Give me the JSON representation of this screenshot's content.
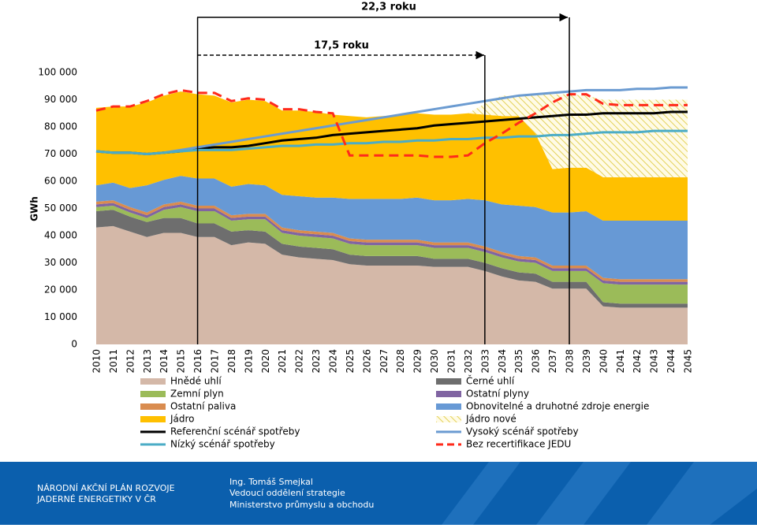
{
  "chart_data": {
    "type": "stacked-area",
    "annotations": [
      "22,3 roku",
      "17,5 roku"
    ],
    "ylabel": "GWh",
    "categories": [
      "2010",
      "2011",
      "2012",
      "2013",
      "2014",
      "2015",
      "2016",
      "2017",
      "2018",
      "2019",
      "2020",
      "2021",
      "2022",
      "2023",
      "2024",
      "2025",
      "2026",
      "2027",
      "2028",
      "2029",
      "2030",
      "2031",
      "2032",
      "2033",
      "2034",
      "2035",
      "2036",
      "2037",
      "2038",
      "2039",
      "2040",
      "2041",
      "2042",
      "2043",
      "2044",
      "2045"
    ],
    "ylim": [
      0,
      100000
    ],
    "yticks": [
      0,
      {
        "value": 10000,
        "label": "10 000"
      },
      {
        "value": 20000,
        "label": "20 000"
      },
      {
        "value": 30000,
        "label": "30 000"
      },
      {
        "value": 40000,
        "label": "40 000"
      },
      {
        "value": 50000,
        "label": "50 000"
      },
      {
        "value": 60000,
        "label": "60 000"
      },
      {
        "value": 70000,
        "label": "70 000"
      },
      {
        "value": 80000,
        "label": "80 000"
      },
      {
        "value": 90000,
        "label": "90 000"
      },
      {
        "value": 100000,
        "label": "100 000"
      }
    ],
    "grid": false,
    "series": [
      {
        "name": "Hnědé uhlí",
        "kind": "area",
        "color": "#d4b8a8",
        "values": [
          43000,
          43500,
          41500,
          39500,
          41000,
          41000,
          39500,
          39500,
          36500,
          37500,
          37000,
          33000,
          32000,
          31500,
          31000,
          29500,
          29000,
          29000,
          29000,
          29000,
          28500,
          28500,
          28500,
          27000,
          25000,
          23500,
          23000,
          20500,
          20500,
          20500,
          14000,
          13500,
          13500,
          13500,
          13500,
          13500
        ]
      },
      {
        "name": "Černé uhlí",
        "kind": "area",
        "color": "#6e6e6e",
        "values": [
          6000,
          6000,
          5500,
          5500,
          5500,
          5500,
          5000,
          5000,
          5000,
          4500,
          4500,
          4000,
          4000,
          4000,
          4000,
          3500,
          3500,
          3500,
          3500,
          3500,
          3000,
          3000,
          3000,
          3000,
          3000,
          3000,
          3000,
          2500,
          2500,
          2500,
          1500,
          1500,
          1500,
          1500,
          1500,
          1500
        ]
      },
      {
        "name": "Zemní plyn",
        "kind": "area",
        "color": "#9bbb59",
        "values": [
          1500,
          1500,
          1500,
          1500,
          3000,
          4000,
          4500,
          4500,
          4000,
          4000,
          4500,
          4000,
          4000,
          4000,
          4000,
          4000,
          4000,
          4000,
          4000,
          4000,
          4000,
          4000,
          4000,
          4000,
          4000,
          4000,
          4000,
          4000,
          4000,
          4000,
          7000,
          7000,
          7000,
          7000,
          7000,
          7000
        ]
      },
      {
        "name": "Ostatní plyny",
        "kind": "area",
        "color": "#8064a2",
        "values": [
          1000,
          1000,
          1000,
          1000,
          1000,
          1000,
          1000,
          1000,
          1000,
          1000,
          1000,
          1000,
          1000,
          1000,
          1000,
          1000,
          1000,
          1000,
          1000,
          1000,
          1000,
          1000,
          1000,
          1000,
          1000,
          1000,
          1000,
          1000,
          1000,
          1000,
          1000,
          1000,
          1000,
          1000,
          1000,
          1000
        ]
      },
      {
        "name": "Ostatní paliva",
        "kind": "area",
        "color": "#d98c4f",
        "values": [
          1000,
          1000,
          1000,
          1000,
          1000,
          1000,
          1000,
          1000,
          1000,
          1000,
          1000,
          1000,
          1000,
          1000,
          1000,
          1000,
          1000,
          1000,
          1000,
          1000,
          1000,
          1000,
          1000,
          1000,
          1000,
          1000,
          1000,
          1000,
          1000,
          1000,
          1000,
          1000,
          1000,
          1000,
          1000,
          1000
        ]
      },
      {
        "name": "Obnovitelné a druhotné zdroje energie",
        "kind": "area",
        "color": "#6799d5",
        "values": [
          6000,
          6500,
          7000,
          10000,
          9000,
          9500,
          10000,
          10000,
          10500,
          11000,
          10500,
          12000,
          12500,
          12500,
          13000,
          14500,
          15000,
          15000,
          15000,
          15500,
          15500,
          15500,
          16000,
          17000,
          17500,
          18500,
          18500,
          19500,
          19500,
          20000,
          21000,
          21500,
          21500,
          21500,
          21500,
          21500
        ]
      },
      {
        "name": "Jádro",
        "kind": "area",
        "color": "#ffc000",
        "values": [
          28500,
          28000,
          30000,
          30500,
          31000,
          31000,
          31000,
          30500,
          31000,
          31000,
          31000,
          31000,
          31500,
          31500,
          30500,
          30500,
          30000,
          30500,
          31000,
          31000,
          31500,
          31500,
          31500,
          31500,
          32500,
          33000,
          27000,
          16000,
          16500,
          16000,
          16000,
          16000,
          16000,
          16000,
          16000,
          16000
        ]
      },
      {
        "name": "Jádro nové",
        "kind": "area",
        "pattern": "hatch",
        "color": "#e3d15a",
        "values": [
          0,
          0,
          0,
          0,
          0,
          0,
          0,
          0,
          0,
          0,
          0,
          0,
          0,
          0,
          0,
          0,
          0,
          0,
          0,
          0,
          0,
          0,
          0,
          4000,
          7500,
          7500,
          14500,
          27500,
          27000,
          26500,
          28500,
          28500,
          28500,
          28500,
          28500,
          28500
        ]
      },
      {
        "name": "Referenční scénář spotřeby",
        "kind": "line",
        "color": "#000000",
        "values": [
          71000,
          70500,
          70500,
          70000,
          70500,
          71000,
          72000,
          72500,
          72500,
          73000,
          74000,
          75000,
          75500,
          76000,
          77000,
          77500,
          78000,
          78500,
          79000,
          79500,
          80500,
          81000,
          81500,
          82000,
          82500,
          83000,
          83500,
          84000,
          84500,
          84500,
          85000,
          85000,
          85000,
          85000,
          85500,
          85500
        ]
      },
      {
        "name": "Vysoký scénář spotřeby",
        "kind": "line",
        "color": "#6b9bd1",
        "values": [
          71000,
          70500,
          70500,
          70000,
          70500,
          71500,
          72500,
          73500,
          74500,
          75500,
          76500,
          77500,
          78500,
          79500,
          80500,
          81500,
          82500,
          83500,
          84500,
          85500,
          86500,
          87500,
          88500,
          89500,
          90500,
          91500,
          92000,
          92500,
          93000,
          93500,
          93500,
          93500,
          94000,
          94000,
          94500,
          94500
        ]
      },
      {
        "name": "Nízký scénář spotřeby",
        "kind": "line",
        "color": "#4bacc6",
        "values": [
          71000,
          70500,
          70500,
          70000,
          70500,
          71000,
          71500,
          71500,
          71500,
          72000,
          72500,
          73000,
          73000,
          73500,
          73500,
          74000,
          74000,
          74500,
          74500,
          75000,
          75000,
          75500,
          75500,
          76000,
          76000,
          76500,
          76500,
          77000,
          77000,
          77500,
          78000,
          78000,
          78000,
          78500,
          78500,
          78500
        ]
      },
      {
        "name": "Bez recertifikace JEDU",
        "kind": "line",
        "dash": true,
        "color": "#ff2a1a",
        "values": [
          86000,
          87500,
          87500,
          89500,
          92000,
          93500,
          92500,
          92500,
          89500,
          90500,
          90000,
          86500,
          86500,
          85500,
          85000,
          69500,
          69500,
          69500,
          69500,
          69500,
          69000,
          69000,
          69500,
          74000,
          77500,
          81500,
          85000,
          89000,
          92000,
          92000,
          88500,
          88000,
          88000,
          88000,
          88000,
          88000
        ]
      }
    ]
  },
  "footer": {
    "left": [
      "NÁRODNÍ AKČNÍ PLÁN ROZVOJE",
      "JADERNÉ ENERGETIKY V ČR"
    ],
    "right": [
      "Ing. Tomáš Smejkal",
      "Vedoucí oddělení strategie",
      "Ministerstvo průmyslu a obchodu"
    ]
  }
}
